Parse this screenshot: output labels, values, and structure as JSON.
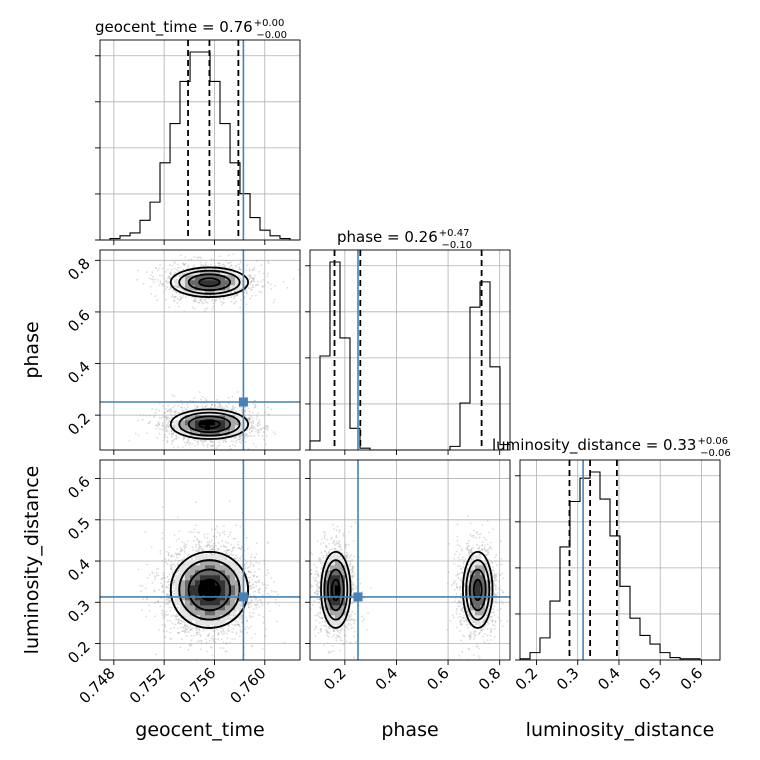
{
  "chart_data": {
    "type": "corner",
    "parameters": [
      "geocent_time",
      "phase",
      "luminosity_distance"
    ],
    "truths": {
      "geocent_time": 0.7583,
      "phase": 0.251,
      "luminosity_distance": 0.313
    },
    "titles": [
      {
        "param": "geocent_time",
        "text": "geocent_time = 0.76",
        "plus": "+0.00",
        "minus": "−0.00"
      },
      {
        "param": "phase",
        "text": "phase = 0.26",
        "plus": "+0.47",
        "minus": "−0.10"
      },
      {
        "param": "luminosity_distance",
        "text": "luminosity_distance = 0.33",
        "plus": "+0.06",
        "minus": "−0.06"
      }
    ],
    "ranges": {
      "geocent_time": [
        0.7469,
        0.7628
      ],
      "phase": [
        0.065,
        0.84
      ],
      "luminosity_distance": [
        0.16,
        0.645
      ]
    },
    "ticks": {
      "geocent_time": [
        "0.748",
        "0.752",
        "0.756",
        "0.760"
      ],
      "phase": [
        "0.2",
        "0.4",
        "0.6",
        "0.8"
      ],
      "luminosity_distance": [
        "0.2",
        "0.3",
        "0.4",
        "0.5",
        "0.6"
      ]
    },
    "quantiles": {
      "geocent_time": [
        0.7539,
        0.7556,
        0.7579
      ],
      "phase": [
        0.16,
        0.26,
        0.73
      ],
      "luminosity_distance": [
        0.28,
        0.33,
        0.395
      ]
    },
    "histograms": {
      "geocent_time": {
        "edges": [
          0.7469,
          0.7477,
          0.74849,
          0.74929,
          0.75008,
          0.75088,
          0.75167,
          0.75247,
          0.75326,
          0.75406,
          0.75485,
          0.75565,
          0.75644,
          0.75724,
          0.75803,
          0.75883,
          0.75962,
          0.76042,
          0.76121,
          0.76201,
          0.7628
        ],
        "counts": [
          0,
          1,
          3,
          5,
          14,
          27,
          55,
          83,
          113,
          134,
          134,
          113,
          83,
          55,
          33,
          16,
          7,
          3,
          1,
          0
        ]
      },
      "phase": {
        "edges": [
          0.065,
          0.10375,
          0.1425,
          0.18125,
          0.22,
          0.25875,
          0.2975,
          0.33625,
          0.375,
          0.41375,
          0.4525,
          0.49125,
          0.53,
          0.56875,
          0.6075,
          0.64625,
          0.685,
          0.72375,
          0.7625,
          0.80125,
          0.84
        ],
        "counts": [
          5,
          52,
          104,
          62,
          12,
          1,
          0,
          0,
          0,
          0,
          0,
          0,
          0,
          0,
          2,
          26,
          79,
          93,
          46,
          3
        ]
      },
      "luminosity_distance": {
        "edges": [
          0.16,
          0.18425,
          0.2085,
          0.23275,
          0.257,
          0.28125,
          0.3055,
          0.32975,
          0.354,
          0.37825,
          0.4025,
          0.42675,
          0.451,
          0.47525,
          0.4995,
          0.52375,
          0.548,
          0.57225,
          0.5965,
          0.62075,
          0.645
        ],
        "counts": [
          1,
          6,
          18,
          48,
          92,
          129,
          148,
          153,
          131,
          101,
          60,
          34,
          20,
          13,
          6,
          2,
          1,
          1,
          0,
          0
        ]
      }
    },
    "posterior_modes": [
      {
        "geocent_time": 0.7556,
        "phase": 0.165,
        "luminosity_distance": 0.33,
        "weight": 0.55,
        "phase_spread": 0.028
      },
      {
        "geocent_time": 0.7556,
        "phase": 0.715,
        "luminosity_distance": 0.33,
        "weight": 0.45,
        "phase_spread": 0.028
      }
    ],
    "posterior_spread": {
      "geocent_time": 0.0015,
      "luminosity_distance": 0.045
    },
    "colors": {
      "truth": "#4682b4",
      "contour": "#000000",
      "grid": "#b0b0b0"
    }
  }
}
